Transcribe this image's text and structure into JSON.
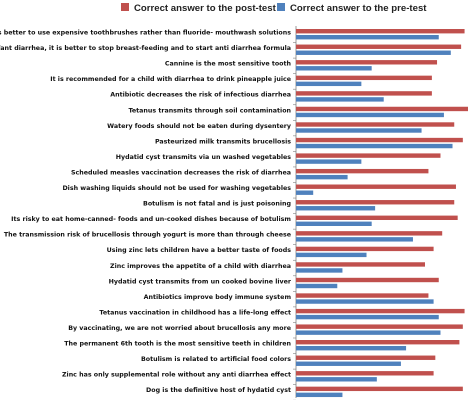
{
  "colors": {
    "post": "#c0504d",
    "pre": "#4f81bd",
    "axis": "#7f7f7f"
  },
  "chart_data": {
    "type": "bar",
    "orientation": "horizontal",
    "title": "",
    "xlabel": "",
    "ylabel": "",
    "xlim": [
      0,
      100
    ],
    "grid": false,
    "legend_position": "top",
    "series": [
      {
        "name": "Correct answer to the post-test",
        "key": "post",
        "values": [
          98,
          96,
          82,
          79,
          79,
          100,
          92,
          97,
          84,
          77,
          93,
          92,
          94,
          85,
          80,
          75,
          83,
          77,
          98,
          97,
          95,
          81,
          80,
          97
        ]
      },
      {
        "name": "Correct answer to the pre-test",
        "key": "pre",
        "values": [
          83,
          90,
          44,
          38,
          51,
          86,
          73,
          91,
          38,
          30,
          10,
          46,
          44,
          68,
          41,
          27,
          24,
          80,
          83,
          84,
          64,
          61,
          47,
          27
        ]
      }
    ],
    "categories": [
      "It is better to use expensive toothbrushes rather than fluoride- mouthwash solutions",
      "For infant diarrhea, it is better to stop breast-feeding and to start anti diarrhea formula",
      "Cannine is the most sensitive tooth",
      "It is recommended for a child with diarrhea to drink pineapple juice",
      "Antibiotic decreases the risk of infectious diarrhea",
      "Tetanus transmits through soil contamination",
      "Watery foods should not be eaten during dysentery",
      "Pasteurized milk transmits brucellosis",
      "Hydatid cyst transmits via un washed vegetables",
      "Scheduled measles vaccination decreases the risk of diarrhea",
      "Dish washing liquids should not be used for washing vegetables",
      "Botulism is not fatal and is just poisoning",
      "Its risky to eat home-canned- foods and un-cooked dishes because of botulism",
      "The transmission risk of brucellosis through yogurt is more than through cheese",
      "Using zinc lets children have a better taste of foods",
      "Zinc improves the appetite of a child with diarrhea",
      "Hydatid cyst transmits from un cooked bovine liver",
      "Antibiotics improve body immune system",
      "Tetanus vaccination in childhood has a life-long effect",
      "By vaccinating, we are not worried about brucellosis any more",
      "The permanent 6th tooth is the most sensitive teeth in children",
      "Botulism is related to artificial food colors",
      "Zinc has only supplemental role without any anti diarrhea effect",
      "Dog is the definitive host of hydatid cyst"
    ]
  }
}
